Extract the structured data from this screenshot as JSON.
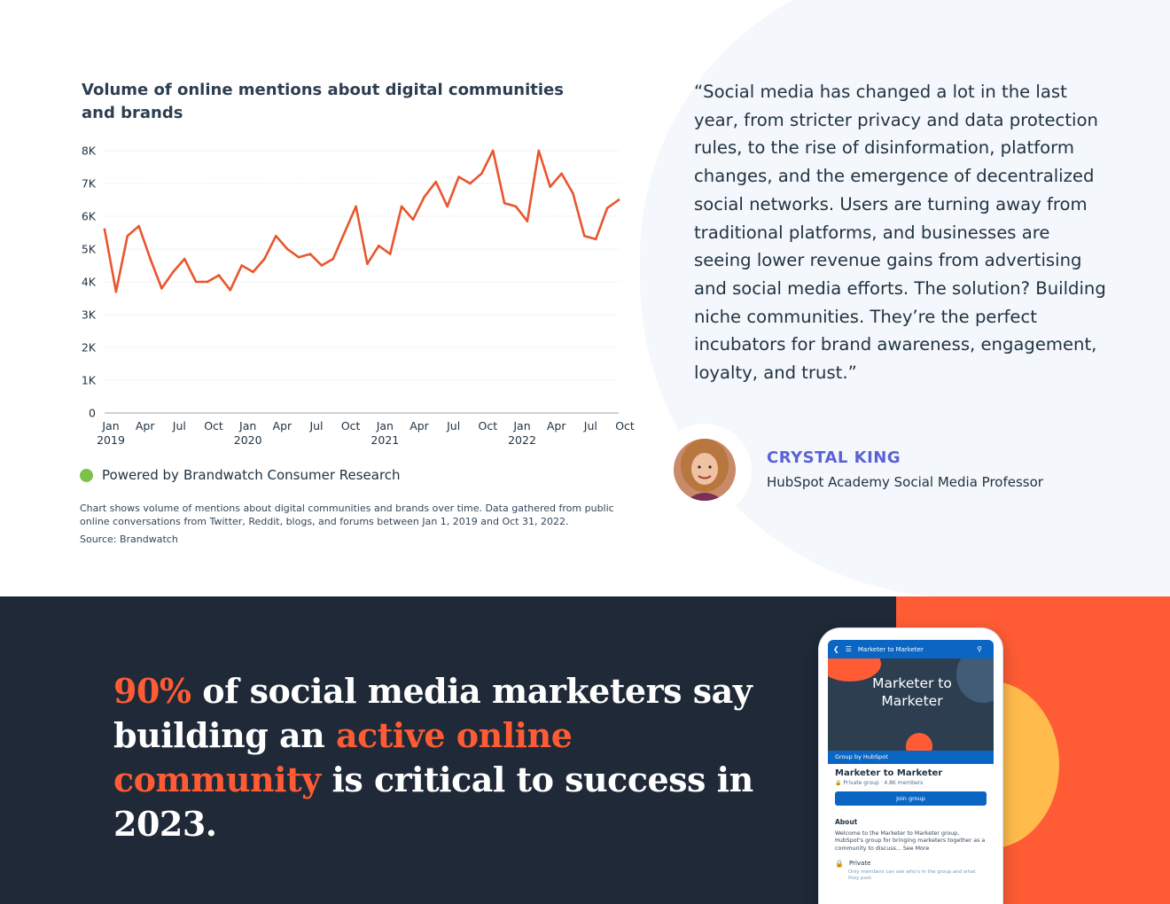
{
  "chart_data": {
    "type": "line",
    "title": "Volume of online mentions about digital communities and brands",
    "xlabel": "",
    "ylabel": "",
    "x_range": [
      "2019-01",
      "2022-10"
    ],
    "ylim": [
      0,
      8000
    ],
    "y_ticks": [
      {
        "value": 0,
        "label": "0"
      },
      {
        "value": 1000,
        "label": "1K"
      },
      {
        "value": 2000,
        "label": "2K"
      },
      {
        "value": 3000,
        "label": "3K"
      },
      {
        "value": 4000,
        "label": "4K"
      },
      {
        "value": 5000,
        "label": "5K"
      },
      {
        "value": 6000,
        "label": "6K"
      },
      {
        "value": 7000,
        "label": "7K"
      },
      {
        "value": 8000,
        "label": "8K"
      }
    ],
    "x_ticks": [
      {
        "x": "2019-01",
        "label": "Jan",
        "year": "2019"
      },
      {
        "x": "2019-04",
        "label": "Apr",
        "year": ""
      },
      {
        "x": "2019-07",
        "label": "Jul",
        "year": ""
      },
      {
        "x": "2019-10",
        "label": "Oct",
        "year": ""
      },
      {
        "x": "2020-01",
        "label": "Jan",
        "year": "2020"
      },
      {
        "x": "2020-04",
        "label": "Apr",
        "year": ""
      },
      {
        "x": "2020-07",
        "label": "Jul",
        "year": ""
      },
      {
        "x": "2020-10",
        "label": "Oct",
        "year": ""
      },
      {
        "x": "2021-01",
        "label": "Jan",
        "year": "2021"
      },
      {
        "x": "2021-04",
        "label": "Apr",
        "year": ""
      },
      {
        "x": "2021-07",
        "label": "Jul",
        "year": ""
      },
      {
        "x": "2021-10",
        "label": "Oct",
        "year": ""
      },
      {
        "x": "2022-01",
        "label": "Jan",
        "year": "2022"
      },
      {
        "x": "2022-04",
        "label": "Apr",
        "year": ""
      },
      {
        "x": "2022-07",
        "label": "Jul",
        "year": ""
      },
      {
        "x": "2022-10",
        "label": "Oct",
        "year": ""
      }
    ],
    "grid": true,
    "legend": "none",
    "series": [
      {
        "color": "#e8562e",
        "points": [
          {
            "x": "2019-01",
            "y": 5600
          },
          {
            "x": "2019-02",
            "y": 3700
          },
          {
            "x": "2019-03",
            "y": 5400
          },
          {
            "x": "2019-04",
            "y": 5700
          },
          {
            "x": "2019-05",
            "y": 4700
          },
          {
            "x": "2019-06",
            "y": 3800
          },
          {
            "x": "2019-07",
            "y": 4300
          },
          {
            "x": "2019-08",
            "y": 4700
          },
          {
            "x": "2019-09",
            "y": 4000
          },
          {
            "x": "2019-10",
            "y": 4000
          },
          {
            "x": "2019-11",
            "y": 4200
          },
          {
            "x": "2019-12",
            "y": 3750
          },
          {
            "x": "2020-01",
            "y": 4500
          },
          {
            "x": "2020-02",
            "y": 4300
          },
          {
            "x": "2020-03",
            "y": 4700
          },
          {
            "x": "2020-04",
            "y": 5400
          },
          {
            "x": "2020-05",
            "y": 5000
          },
          {
            "x": "2020-06",
            "y": 4750
          },
          {
            "x": "2020-07",
            "y": 4850
          },
          {
            "x": "2020-08",
            "y": 4500
          },
          {
            "x": "2020-09",
            "y": 4700
          },
          {
            "x": "2020-10",
            "y": 5500
          },
          {
            "x": "2020-11",
            "y": 6300
          },
          {
            "x": "2020-12",
            "y": 4550
          },
          {
            "x": "2021-01",
            "y": 5100
          },
          {
            "x": "2021-02",
            "y": 4850
          },
          {
            "x": "2021-03",
            "y": 6300
          },
          {
            "x": "2021-04",
            "y": 5900
          },
          {
            "x": "2021-05",
            "y": 6600
          },
          {
            "x": "2021-06",
            "y": 7050
          },
          {
            "x": "2021-07",
            "y": 6300
          },
          {
            "x": "2021-08",
            "y": 7200
          },
          {
            "x": "2021-09",
            "y": 7000
          },
          {
            "x": "2021-10",
            "y": 7300
          },
          {
            "x": "2021-11",
            "y": 8000
          },
          {
            "x": "2021-12",
            "y": 6400
          },
          {
            "x": "2022-01",
            "y": 6300
          },
          {
            "x": "2022-02",
            "y": 5850
          },
          {
            "x": "2022-03",
            "y": 8000
          },
          {
            "x": "2022-04",
            "y": 6900
          },
          {
            "x": "2022-05",
            "y": 7300
          },
          {
            "x": "2022-06",
            "y": 6700
          },
          {
            "x": "2022-07",
            "y": 5400
          },
          {
            "x": "2022-08",
            "y": 5300
          },
          {
            "x": "2022-09",
            "y": 6250
          },
          {
            "x": "2022-10",
            "y": 6500
          }
        ]
      }
    ]
  },
  "chart_footer": {
    "powered_prefix": "Powered by",
    "powered_brand": "Brandwatch Consumer Research",
    "note": "Chart shows volume of mentions about digital communities and brands over time. Data gathered from public online conversations from Twitter, Reddit, blogs, and forums between Jan 1, 2019 and Oct 31, 2022.",
    "source": "Source: Brandwatch"
  },
  "quote": {
    "text": "“Social media has changed a lot in the last year, from stricter privacy and data protection rules, to the rise of disinformation, platform changes, and the emergence of decentralized social networks. Users are turning away from traditional platforms, and businesses are seeing lower revenue gains from advertising and social media efforts. The solution? Building niche communities. They’re the perfect incubators for brand awareness, engagement, loyalty, and trust.”",
    "author_name": "CRYSTAL KING",
    "author_role": "HubSpot Academy Social Media Professor"
  },
  "banner": {
    "stat": "90%",
    "part1": " of social media marketers say building an ",
    "highlight": "active online community",
    "part2": " is critical to success in 2023."
  },
  "phone": {
    "app_title": "Marketer to Marketer",
    "cover_text": "Marketer to Marketer",
    "group_by": "Group by HubSpot",
    "group_title": "Marketer to Marketer",
    "group_meta": "Private group · 4.8K members",
    "join_label": "Join group",
    "about_heading": "About",
    "about_text": "Welcome to the Marketer to Marketer group, HubSpot's group for bringing marketers together as a community to discuss... See More",
    "private_label": "Private",
    "private_text": "Only members can see who's in the group and what they post."
  },
  "colors": {
    "accent_orange": "#ff5c35",
    "banner_dark": "#1f2937",
    "author_purple": "#5c62d6",
    "powered_green": "#7dc14a",
    "sun_yellow": "#ffbc4c",
    "app_blue": "#0a66c2"
  }
}
